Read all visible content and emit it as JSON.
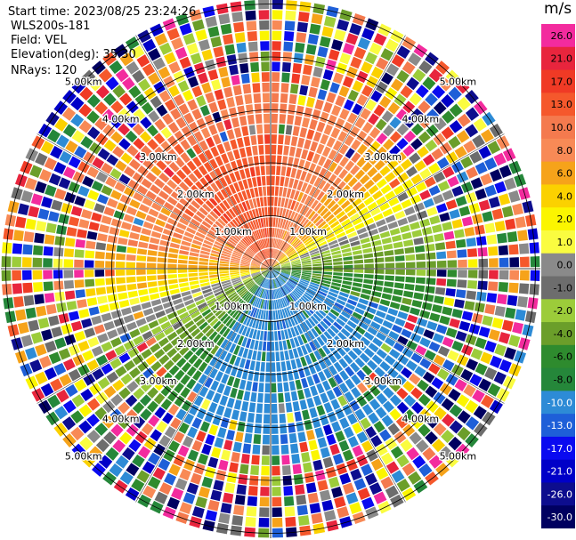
{
  "info": {
    "start_time": "Start time: 2023/08/25 23:24:26",
    "instrument": "WLS200s-181",
    "field": "Field: VEL",
    "elevation": "Elevation(deg): 35.30",
    "nrays": "NRays: 120"
  },
  "colorbar": {
    "unit": "m/s",
    "levels": [
      {
        "label": "26.0",
        "color": "#f32b9e"
      },
      {
        "label": "21.0",
        "color": "#e8253d"
      },
      {
        "label": "17.0",
        "color": "#f03a25"
      },
      {
        "label": "13.0",
        "color": "#f5582c"
      },
      {
        "label": "10.0",
        "color": "#f47a4e"
      },
      {
        "label": "8.0",
        "color": "#f88a56"
      },
      {
        "label": "6.0",
        "color": "#f6a31a"
      },
      {
        "label": "4.0",
        "color": "#fbd100"
      },
      {
        "label": "2.0",
        "color": "#fbf500"
      },
      {
        "label": "1.0",
        "color": "#fafc40"
      },
      {
        "label": "0.0",
        "color": "#8a8a8a"
      },
      {
        "label": "-1.0",
        "color": "#6d6d6d"
      },
      {
        "label": "-2.0",
        "color": "#9ccc3a"
      },
      {
        "label": "-4.0",
        "color": "#6b9e2a"
      },
      {
        "label": "-6.0",
        "color": "#2e8b2e"
      },
      {
        "label": "-8.0",
        "color": "#25873a"
      },
      {
        "label": "-10.0",
        "color": "#2d8bd6"
      },
      {
        "label": "-13.0",
        "color": "#1e5fd8"
      },
      {
        "label": "-17.0",
        "color": "#0a0af0"
      },
      {
        "label": "-21.0",
        "color": "#0000c8"
      },
      {
        "label": "-26.0",
        "color": "#0d0d8e"
      },
      {
        "label": "-30.0",
        "color": "#000060"
      }
    ]
  },
  "range_rings": {
    "labels": [
      "1.00km",
      "2.00km",
      "3.00km",
      "4.00km",
      "5.00km"
    ]
  },
  "chart_data": {
    "type": "heatmap",
    "title": "",
    "field": "VEL",
    "units": "m/s",
    "nrays": 120,
    "range_rings_km": [
      1,
      2,
      3,
      4,
      5
    ],
    "colorbar_ticks": [
      26.0,
      21.0,
      17.0,
      13.0,
      10.0,
      8.0,
      6.0,
      4.0,
      2.0,
      1.0,
      0.0,
      -1.0,
      -2.0,
      -4.0,
      -6.0,
      -8.0,
      -10.0,
      -13.0,
      -17.0,
      -21.0,
      -26.0,
      -30.0
    ],
    "zones": [
      {
        "sector": "north",
        "typical_value": 10.0
      },
      {
        "sector": "north-east / south-west band",
        "typical_value": 2.0
      },
      {
        "sector": "east / west near-zero band",
        "typical_value": 0.0
      },
      {
        "sector": "south-west",
        "typical_value": -4.0
      },
      {
        "sector": "south",
        "typical_value": -10.0
      },
      {
        "sector": "outer ring",
        "typical_value": "noise (mixed)"
      }
    ]
  }
}
